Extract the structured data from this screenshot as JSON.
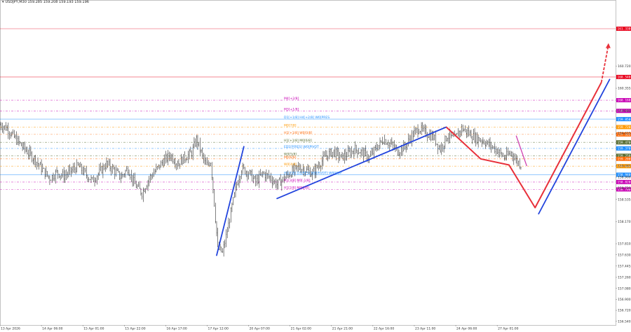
{
  "header": {
    "symbol_line": "USDJPY,M30  159.285 159.208 159.193 159.196",
    "window_menu": "▾"
  },
  "chart_data": {
    "type": "line",
    "title": "USDJPY,M30",
    "price_range": [
      156.48,
      161.8
    ],
    "x_ticks": [
      {
        "i": 0,
        "label": "13 Apr 2026"
      },
      {
        "i": 35,
        "label": "14 Apr 06:00"
      },
      {
        "i": 70,
        "label": "15 Apr 01:00"
      },
      {
        "i": 105,
        "label": "15 Apr 22:00"
      },
      {
        "i": 140,
        "label": "16 Apr 17:00"
      },
      {
        "i": 175,
        "label": "17 Apr 12:00"
      },
      {
        "i": 210,
        "label": "20 Apr 07:00"
      },
      {
        "i": 245,
        "label": "21 Apr 02:00"
      },
      {
        "i": 280,
        "label": "21 Apr 21:00"
      },
      {
        "i": 315,
        "label": "22 Apr 16:00"
      },
      {
        "i": 350,
        "label": "23 Apr 11:00"
      },
      {
        "i": 385,
        "label": "24 Apr 06:00"
      },
      {
        "i": 420,
        "label": "27 Apr 01:00"
      }
    ],
    "y_ticks": [
      "160.720",
      "160.355",
      "159.985",
      "159.615",
      "159.085",
      "158.900",
      "158.720",
      "158.535",
      "158.170",
      "157.810",
      "157.630",
      "157.445",
      "157.260",
      "157.080",
      "156.900",
      "156.720",
      "156.540"
    ],
    "y_tick_values": [
      160.72,
      160.355,
      159.985,
      159.615,
      159.085,
      158.9,
      158.72,
      158.535,
      158.17,
      157.81,
      157.63,
      157.445,
      157.26,
      157.08,
      156.9,
      156.72,
      156.54
    ],
    "price_anchors": [
      [
        0,
        159.76
      ],
      [
        6,
        159.7
      ],
      [
        12,
        159.55
      ],
      [
        18,
        159.42
      ],
      [
        24,
        159.3
      ],
      [
        30,
        159.18
      ],
      [
        36,
        159.02
      ],
      [
        42,
        158.88
      ],
      [
        48,
        158.98
      ],
      [
        54,
        158.92
      ],
      [
        60,
        159.0
      ],
      [
        66,
        159.08
      ],
      [
        72,
        158.96
      ],
      [
        78,
        158.84
      ],
      [
        84,
        158.98
      ],
      [
        90,
        159.12
      ],
      [
        96,
        159.02
      ],
      [
        102,
        158.9
      ],
      [
        108,
        159.04
      ],
      [
        114,
        158.78
      ],
      [
        120,
        158.64
      ],
      [
        126,
        158.88
      ],
      [
        132,
        159.02
      ],
      [
        138,
        159.16
      ],
      [
        144,
        159.26
      ],
      [
        150,
        159.12
      ],
      [
        156,
        159.22
      ],
      [
        162,
        159.3
      ],
      [
        166,
        159.52
      ],
      [
        170,
        159.3
      ],
      [
        174,
        159.08
      ],
      [
        178,
        159.16
      ],
      [
        180,
        158.72
      ],
      [
        184,
        157.74
      ],
      [
        188,
        157.66
      ],
      [
        192,
        158.02
      ],
      [
        196,
        158.42
      ],
      [
        200,
        158.78
      ],
      [
        204,
        159.04
      ],
      [
        210,
        158.98
      ],
      [
        216,
        158.82
      ],
      [
        222,
        158.96
      ],
      [
        228,
        158.9
      ],
      [
        234,
        158.78
      ],
      [
        240,
        158.88
      ],
      [
        246,
        158.98
      ],
      [
        252,
        159.06
      ],
      [
        258,
        159.02
      ],
      [
        264,
        158.96
      ],
      [
        270,
        159.12
      ],
      [
        276,
        159.26
      ],
      [
        282,
        159.32
      ],
      [
        288,
        159.22
      ],
      [
        294,
        159.28
      ],
      [
        300,
        159.36
      ],
      [
        306,
        159.3
      ],
      [
        312,
        159.22
      ],
      [
        318,
        159.38
      ],
      [
        324,
        159.52
      ],
      [
        330,
        159.44
      ],
      [
        336,
        159.32
      ],
      [
        342,
        159.4
      ],
      [
        348,
        159.58
      ],
      [
        354,
        159.7
      ],
      [
        360,
        159.62
      ],
      [
        366,
        159.56
      ],
      [
        372,
        159.36
      ],
      [
        378,
        159.58
      ],
      [
        384,
        159.52
      ],
      [
        390,
        159.7
      ],
      [
        396,
        159.62
      ],
      [
        402,
        159.54
      ],
      [
        408,
        159.5
      ],
      [
        414,
        159.42
      ],
      [
        420,
        159.34
      ],
      [
        426,
        159.22
      ],
      [
        432,
        159.3
      ],
      [
        436,
        159.18
      ],
      [
        440,
        159.1
      ]
    ],
    "levels": [
      {
        "price": 161.33,
        "label": "",
        "color": "#e8001a",
        "style": "solid",
        "tag": "161.330",
        "tag_color": "#e8001a"
      },
      {
        "price": 160.54,
        "label": "",
        "color": "#e8001a",
        "style": "solid",
        "tag": "160.540",
        "tag_color": "#e8001a"
      },
      {
        "price": 160.16,
        "label": "M4[+2/8]",
        "color": "#c800b4",
        "style": "dashdot",
        "tag": "160.160",
        "tag_color": "#c800b4"
      },
      {
        "price": 159.985,
        "label": "M3[+1/8]",
        "color": "#c800b4",
        "style": "dashdot",
        "tag": "159.985",
        "tag_color": "#c800b4"
      },
      {
        "price": 159.85,
        "label": "D1[+1/8] H4[+2/8] W0[PRES",
        "color": "#1a8cff",
        "style": "solid",
        "tag": "159.850",
        "tag_color": "#1a8cff"
      },
      {
        "price": 159.72,
        "label": "M0[7/8]",
        "color": "#ff9900",
        "style": "dashdot",
        "tag": "159.720",
        "tag_color": "#ff9900"
      },
      {
        "price": 159.6,
        "label": "H1[+1/8] W0[0/8]",
        "color": "#ff6600",
        "style": "dashdot",
        "tag": "159.600",
        "tag_color": "#ff6600"
      },
      {
        "price": 159.47,
        "label": "H1[+1/8] M0[6/8]",
        "color": "#556b2f",
        "style": "dashdot",
        "tag": "159.470",
        "tag_color": "#556b2f"
      },
      {
        "price": 159.37,
        "label": "ED1[P]RES] W0[PIVOT",
        "color": "#1a8cff",
        "style": "dashdot",
        "tag": "159.370",
        "tag_color": "#1a8cff"
      },
      {
        "price": 159.25,
        "label": "W0[5/8]",
        "color": "#556b2f",
        "style": "dashdot",
        "tag": "159.250",
        "tag_color": "#556b2f"
      },
      {
        "price": 159.2,
        "label": "M0[6/8]",
        "color": "#ff6600",
        "style": "dashdot",
        "tag": "159.200",
        "tag_color": "#ff6600"
      },
      {
        "price": 159.08,
        "label": "W0[4/8]",
        "color": "#ff9900",
        "style": "dashdot",
        "tag": "159.080",
        "tag_color": "#ff9900"
      },
      {
        "price": 158.94,
        "label": "H1[7/8] D1[RES] W0[PIVOT] W0[SUP",
        "color": "#1a8cff",
        "style": "solid",
        "tag": "158.940",
        "tag_color": "#1a8cff"
      },
      {
        "price": 158.82,
        "label": "H1[3/8] M0[-1/8]",
        "color": "#c800b4",
        "style": "dashdot",
        "tag": "158.820",
        "tag_color": "#c800b4"
      },
      {
        "price": 158.7,
        "label": "H1[2/8] M0[2/8]",
        "color": "#c800b4",
        "style": "dashdot",
        "tag": "158.700",
        "tag_color": "#c800b4"
      }
    ],
    "trend_lines": [
      {
        "name": "blue-impulse-1",
        "color": "#2244dd",
        "pts": [
          [
            183,
            157.62
          ],
          [
            206,
            159.4
          ]
        ]
      },
      {
        "name": "blue-impulse-2",
        "color": "#2244dd",
        "pts": [
          [
            234,
            158.55
          ],
          [
            377,
            159.72
          ]
        ]
      },
      {
        "name": "blue-forecast",
        "color": "#2244dd",
        "pts": [
          [
            455,
            158.3
          ],
          [
            515,
            160.5
          ]
        ]
      }
    ],
    "forecast_paths": [
      {
        "name": "red-forecast",
        "color": "#e8303a",
        "pts": [
          [
            377,
            159.72
          ],
          [
            406,
            159.2
          ],
          [
            430,
            159.1
          ],
          [
            452,
            158.4
          ],
          [
            508,
            160.45
          ]
        ]
      },
      {
        "name": "magenta-path",
        "color": "#d040b0",
        "pts": [
          [
            436,
            159.58
          ],
          [
            445,
            159.08
          ]
        ]
      }
    ]
  }
}
